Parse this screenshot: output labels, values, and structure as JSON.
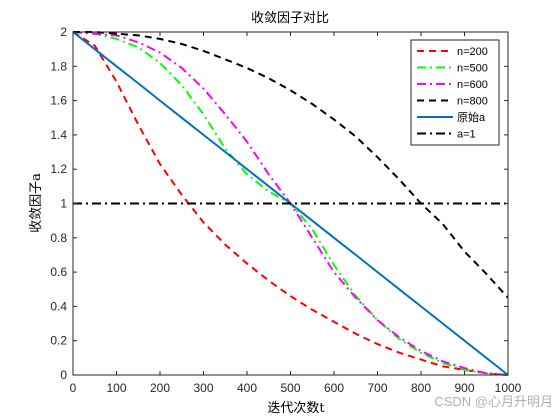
{
  "chart_data": {
    "type": "line",
    "title": "收敛因子对比",
    "xlabel": "迭代次数t",
    "ylabel": "收敛因子a",
    "xlim": [
      0,
      1000
    ],
    "ylim": [
      0,
      2
    ],
    "xticks": [
      "0",
      "100",
      "200",
      "300",
      "400",
      "500",
      "600",
      "700",
      "800",
      "900",
      "1000"
    ],
    "yticks": [
      "0",
      "0.2",
      "0.4",
      "0.6",
      "0.8",
      "1",
      "1.2",
      "1.4",
      "1.6",
      "1.8",
      "2"
    ],
    "grid": false,
    "legend_position": "top-right",
    "x": [
      0,
      50,
      100,
      150,
      200,
      250,
      300,
      350,
      400,
      450,
      500,
      550,
      600,
      650,
      700,
      750,
      800,
      850,
      900,
      950,
      1000
    ],
    "series": [
      {
        "name": "n=200",
        "color": "#ff0000",
        "style": "dashed",
        "values": [
          2.0,
          1.92,
          1.71,
          1.46,
          1.23,
          1.05,
          0.89,
          0.76,
          0.65,
          0.55,
          0.46,
          0.38,
          0.31,
          0.24,
          0.18,
          0.13,
          0.09,
          0.05,
          0.03,
          0.01,
          0.0
        ]
      },
      {
        "name": "n=500",
        "color": "#00ff00",
        "style": "dashdot",
        "values": [
          2.0,
          1.99,
          1.96,
          1.91,
          1.82,
          1.69,
          1.52,
          1.32,
          1.17,
          1.07,
          1.0,
          0.85,
          0.64,
          0.46,
          0.32,
          0.21,
          0.13,
          0.07,
          0.03,
          0.01,
          0.0
        ]
      },
      {
        "name": "n=600",
        "color": "#ff00ff",
        "style": "dashdot",
        "values": [
          2.0,
          1.99,
          1.98,
          1.94,
          1.88,
          1.79,
          1.67,
          1.52,
          1.36,
          1.17,
          1.0,
          0.8,
          0.6,
          0.45,
          0.32,
          0.22,
          0.14,
          0.08,
          0.04,
          0.01,
          0.0
        ]
      },
      {
        "name": "n=800",
        "color": "#000000",
        "style": "dashed",
        "values": [
          2.0,
          2.0,
          1.99,
          1.98,
          1.96,
          1.93,
          1.89,
          1.84,
          1.79,
          1.73,
          1.66,
          1.58,
          1.49,
          1.39,
          1.27,
          1.14,
          1.0,
          0.88,
          0.72,
          0.59,
          0.45
        ]
      },
      {
        "name": "原始a",
        "color": "#0072bd",
        "style": "solid",
        "values": [
          2.0,
          1.9,
          1.8,
          1.7,
          1.6,
          1.5,
          1.4,
          1.3,
          1.2,
          1.1,
          1.0,
          0.9,
          0.8,
          0.7,
          0.6,
          0.5,
          0.4,
          0.3,
          0.2,
          0.1,
          0.0
        ]
      },
      {
        "name": "a=1",
        "color": "#000000",
        "style": "dashdot",
        "values": [
          1,
          1,
          1,
          1,
          1,
          1,
          1,
          1,
          1,
          1,
          1,
          1,
          1,
          1,
          1,
          1,
          1,
          1,
          1,
          1,
          1
        ]
      }
    ]
  },
  "watermark": "CSDN @心月升明月"
}
